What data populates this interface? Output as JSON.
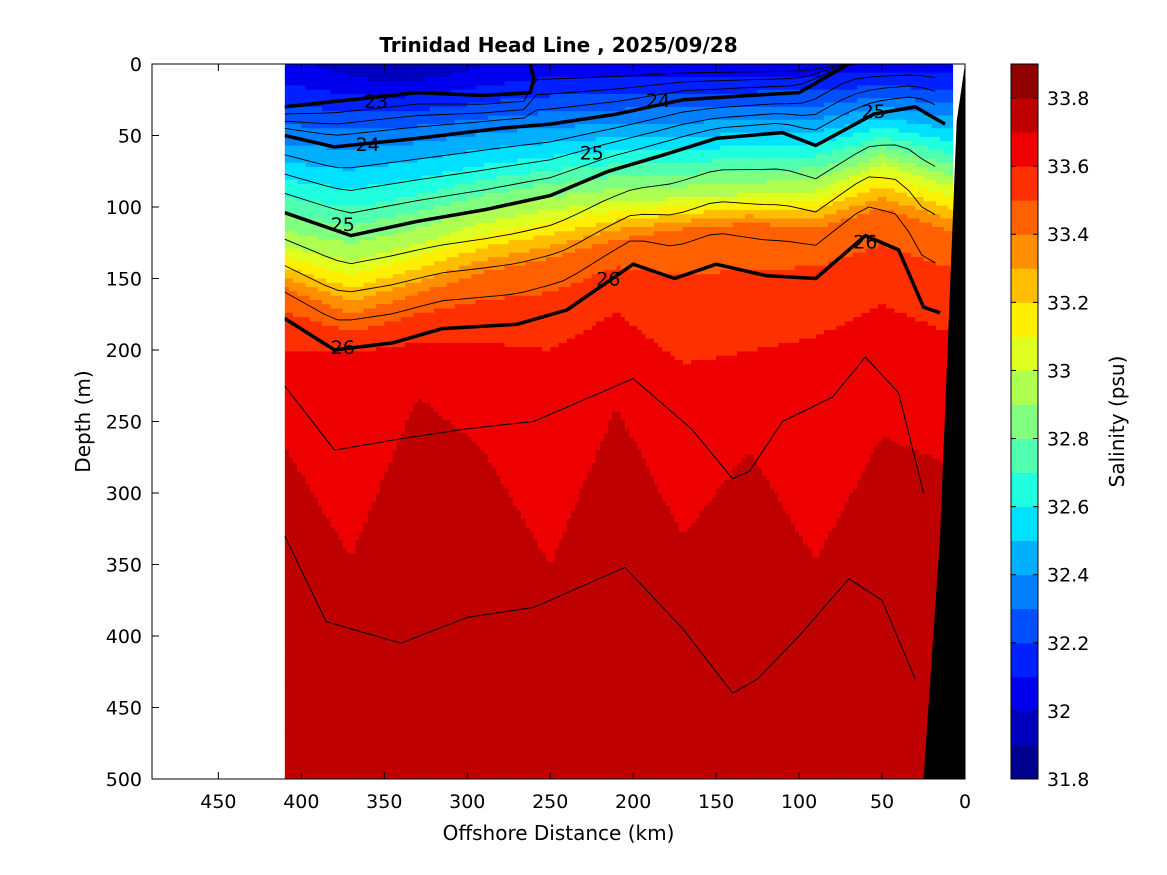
{
  "chart_data": {
    "type": "heatmap",
    "subtype": "filled-contour-section",
    "title": "Trinidad Head Line , 2025/09/28",
    "xlabel": "Offshore Distance (km)",
    "ylabel": "Depth (m)",
    "colorbar_label": "Salinity (psu)",
    "xlim": [
      490,
      0
    ],
    "ylim": [
      500,
      0
    ],
    "x_ticks": [
      450,
      400,
      350,
      300,
      250,
      200,
      150,
      100,
      50,
      0
    ],
    "y_ticks": [
      0,
      50,
      100,
      150,
      200,
      250,
      300,
      350,
      400,
      450,
      500
    ],
    "colorbar_ticks": [
      31.8,
      32,
      32.2,
      32.4,
      32.6,
      32.8,
      33,
      33.2,
      33.4,
      33.6,
      33.8
    ],
    "colorbar_range": [
      31.8,
      33.9
    ],
    "colorbar_levels": [
      "#00008f",
      "#0000bf",
      "#0000ef",
      "#0020ff",
      "#0050ff",
      "#0080ff",
      "#00b0ff",
      "#00e0ff",
      "#20ffdf",
      "#50ffaf",
      "#80ff80",
      "#afff50",
      "#dfff20",
      "#ffef00",
      "#ffbf00",
      "#ff8f00",
      "#ff6000",
      "#ff3000",
      "#ef0000",
      "#bf0000",
      "#8f0000"
    ],
    "section_x_range": [
      410,
      10
    ],
    "salinity_profiles": {
      "distance_km": [
        410,
        370,
        330,
        290,
        250,
        210,
        170,
        130,
        90,
        50,
        10
      ],
      "d_33_0_m": [
        128,
        138,
        126,
        111,
        102,
        96,
        94,
        91,
        89,
        70,
        85
      ],
      "d_33_45_m": [
        160,
        180,
        165,
        150,
        140,
        126,
        118,
        114,
        118,
        105,
        120
      ],
      "d_33_65_m": [
        215,
        210,
        205,
        210,
        220,
        190,
        240,
        230,
        215,
        190,
        210
      ],
      "d_33_75_m": [
        320,
        480,
        260,
        330,
        480,
        290,
        420,
        310,
        480,
        330,
        350
      ]
    },
    "isopycnals": [
      {
        "label": "23",
        "distance_km": [
          410,
          370,
          330,
          290,
          262,
          260,
          262
        ],
        "depth_m": [
          30,
          25,
          20,
          22,
          20,
          10,
          0
        ]
      },
      {
        "label": "24",
        "distance_km": [
          410,
          380,
          330,
          280,
          250,
          210,
          170,
          130,
          100,
          85,
          70
        ],
        "depth_m": [
          50,
          58,
          52,
          45,
          42,
          35,
          25,
          22,
          20,
          10,
          0
        ]
      },
      {
        "label": "25",
        "distance_km": [
          410,
          370,
          330,
          290,
          250,
          215,
          180,
          150,
          110,
          90,
          55,
          30,
          12
        ],
        "depth_m": [
          104,
          120,
          110,
          102,
          92,
          75,
          63,
          52,
          48,
          57,
          35,
          30,
          42
        ]
      },
      {
        "label": "26",
        "distance_km": [
          410,
          380,
          345,
          315,
          270,
          240,
          200,
          175,
          150,
          120,
          90,
          60,
          40,
          25,
          15
        ],
        "depth_m": [
          178,
          200,
          195,
          185,
          182,
          172,
          140,
          150,
          140,
          148,
          150,
          120,
          130,
          170,
          174
        ]
      },
      {
        "label": "",
        "distance_km": [
          410,
          380,
          340,
          300,
          260,
          200,
          165,
          140,
          130,
          110,
          80,
          60,
          40,
          25
        ],
        "depth_m": [
          225,
          270,
          262,
          255,
          250,
          220,
          255,
          290,
          285,
          250,
          233,
          205,
          230,
          300
        ]
      },
      {
        "label": "",
        "distance_km": [
          410,
          385,
          340,
          300,
          260,
          205,
          170,
          140,
          125,
          100,
          70,
          50,
          30
        ],
        "depth_m": [
          330,
          390,
          405,
          387,
          380,
          352,
          395,
          440,
          430,
          400,
          360,
          375,
          430
        ]
      }
    ],
    "bathymetry": {
      "distance_km": [
        25,
        15,
        5,
        0
      ],
      "depth_m": [
        500,
        330,
        40,
        0
      ]
    }
  }
}
